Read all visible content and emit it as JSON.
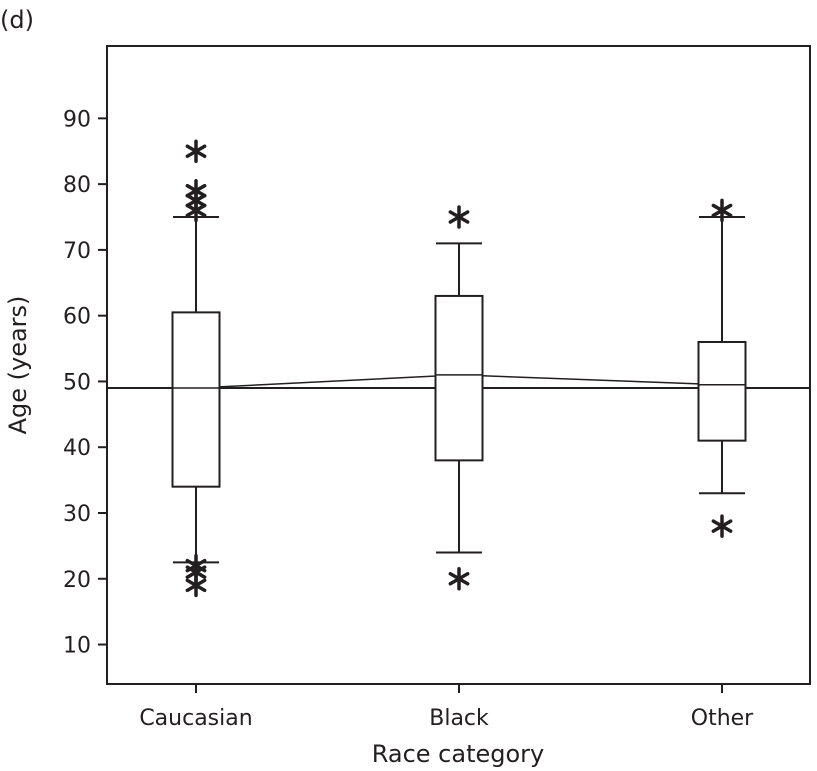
{
  "chart_data": {
    "type": "boxplot",
    "panel_label": "(d)",
    "xlabel": "Race category",
    "ylabel": "Age (years)",
    "ylim": [
      4,
      101
    ],
    "yticks": [
      10,
      20,
      30,
      40,
      50,
      60,
      70,
      80,
      90
    ],
    "categories": [
      "Caucasian",
      "Black",
      "Other"
    ],
    "reference_line": 49,
    "boxes": [
      {
        "category": "Caucasian",
        "whisker_low": 22.5,
        "q1": 34,
        "median": 49,
        "q3": 60.5,
        "whisker_high": 75,
        "outliers": [
          85,
          79,
          77.5,
          76,
          22,
          21,
          19
        ]
      },
      {
        "category": "Black",
        "whisker_low": 24,
        "q1": 38,
        "median": 51,
        "q3": 63,
        "whisker_high": 71,
        "outliers": [
          75,
          20
        ]
      },
      {
        "category": "Other",
        "whisker_low": 33,
        "q1": 41,
        "median": 49.5,
        "q3": 56,
        "whisker_high": 75,
        "outliers": [
          76,
          28
        ]
      }
    ],
    "grid": false,
    "legend": "none"
  },
  "colors": {
    "ink": "#231f20",
    "background": "#ffffff"
  }
}
